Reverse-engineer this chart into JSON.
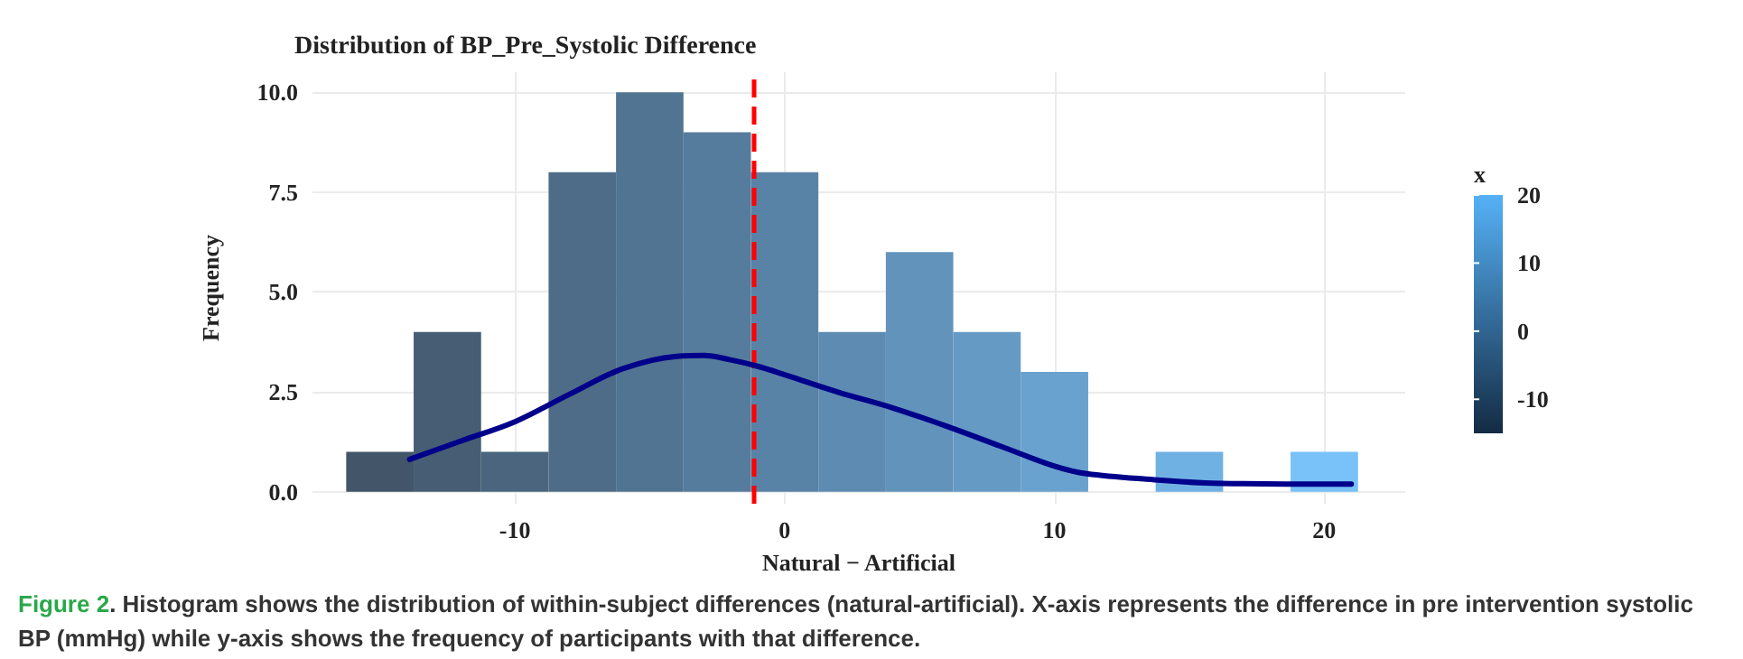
{
  "chart_data": {
    "type": "histogram",
    "title": "Distribution of BP_Pre_Systolic Difference",
    "xlabel": "Natural − Artificial",
    "ylabel": "Frequency",
    "clabel": "x",
    "xlim": [
      -17.5,
      23
    ],
    "xticks": [
      -10,
      0,
      10,
      20
    ],
    "ylim": [
      -0.3,
      10.5
    ],
    "yticks": [
      {
        "value": 0,
        "label": "0.0"
      },
      {
        "value": 2.5,
        "label": "2.5"
      },
      {
        "value": 5,
        "label": "5.0"
      },
      {
        "value": 7.5,
        "label": "7.5"
      },
      {
        "value": 10,
        "label": "10.0"
      }
    ],
    "clim": [
      -15,
      20
    ],
    "cticks": [
      -10,
      0,
      10,
      20
    ],
    "grid": true,
    "series": [
      {
        "colors": [
          "#425569",
          "#465d73",
          "#4a657d",
          "#4e6c87",
          "#517492",
          "#557c9c",
          "#5983a6",
          "#5d8bb1",
          "#6193bb",
          "#659ac5",
          "#69a2cf",
          "#6caada",
          "#70b1e4",
          "#74b9ee",
          "#78c1f9"
        ],
        "bins": [
          -16.25,
          -13.75,
          -11.25,
          -8.75,
          -6.25,
          -3.75,
          -1.25,
          1.25,
          3.75,
          6.25,
          8.75,
          11.25,
          13.75,
          16.25,
          18.75,
          21.25
        ],
        "values": [
          1,
          4,
          1,
          8,
          10,
          9,
          8,
          4,
          6,
          4,
          3,
          0,
          1,
          0,
          1
        ]
      },
      {
        "type": "line",
        "color": "#00008b",
        "x": [
          -13.9,
          -12,
          -10,
          -8,
          -6,
          -4,
          -3,
          -2,
          -1,
          0,
          2,
          4,
          6,
          8,
          10,
          11.2,
          13.7,
          15.6,
          17,
          21
        ],
        "values": [
          0.81,
          1.27,
          1.75,
          2.43,
          3.08,
          3.39,
          3.41,
          3.3,
          3.14,
          2.93,
          2.49,
          2.1,
          1.64,
          1.14,
          0.64,
          0.45,
          0.3,
          0.22,
          0.2,
          0.19
        ]
      }
    ],
    "ref_lines": [
      {
        "axis": "x",
        "value": -1.15,
        "color": "#ff0000",
        "line_style": "dashed"
      }
    ],
    "annotations": [
      "Figure 2. Histogram shows the distribution of within-subject differences (natural-artificial). X-axis represents the difference in pre intervention systolic BP (mmHg) while y-axis shows the frequency of participants with that difference."
    ]
  }
}
